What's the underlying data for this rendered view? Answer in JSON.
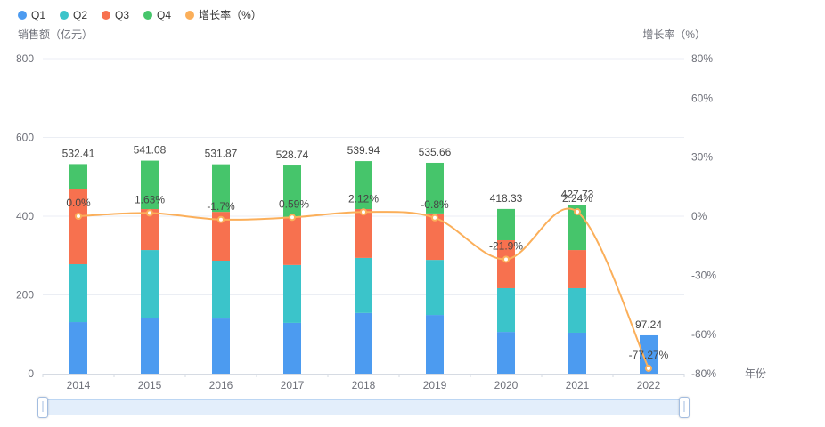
{
  "legend": {
    "items": [
      {
        "label": "Q1",
        "color": "#4C9BF0"
      },
      {
        "label": "Q2",
        "color": "#3BC4CA"
      },
      {
        "label": "Q3",
        "color": "#F7714F"
      },
      {
        "label": "Q4",
        "color": "#46C56B"
      },
      {
        "label": "增长率（%）",
        "color": "#FBAF5A"
      }
    ]
  },
  "chart_data": {
    "type": "bar",
    "categories": [
      "2014",
      "2015",
      "2016",
      "2017",
      "2018",
      "2019",
      "2020",
      "2021",
      "2022"
    ],
    "series": [
      {
        "name": "Q1",
        "kind": "bar",
        "stack": true,
        "color": "#4C9BF0",
        "values": [
          131,
          142,
          140,
          129,
          154,
          149,
          106,
          104,
          97.24
        ]
      },
      {
        "name": "Q2",
        "kind": "bar",
        "stack": true,
        "color": "#3BC4CA",
        "values": [
          147,
          172,
          147,
          147,
          140,
          140,
          111,
          113,
          0
        ]
      },
      {
        "name": "Q3",
        "kind": "bar",
        "stack": true,
        "color": "#F7714F",
        "values": [
          192,
          104,
          124,
          122,
          124,
          118,
          122,
          97,
          0
        ]
      },
      {
        "name": "Q4",
        "kind": "bar",
        "stack": true,
        "color": "#46C56B",
        "values": [
          62.41,
          123.08,
          120.87,
          130.74,
          121.94,
          128.66,
          79.33,
          113.73,
          0
        ]
      },
      {
        "name": "增长率（%）",
        "kind": "line",
        "axis": "right",
        "color": "#FBAF5A",
        "values": [
          0.0,
          1.63,
          -1.7,
          -0.59,
          2.12,
          -0.8,
          -21.9,
          2.24,
          -77.27
        ],
        "point_labels": [
          "0.0%",
          "1.63%",
          "-1.7%",
          "-0.59%",
          "2.12%",
          "-0.8%",
          "-21.9%",
          "2.24%",
          "-77.27%"
        ]
      }
    ],
    "bar_totals": [
      "532.41",
      "541.08",
      "531.87",
      "528.74",
      "539.94",
      "535.66",
      "418.33",
      "427.73",
      "97.24"
    ],
    "left_axis": {
      "name": "销售额（亿元）",
      "ticks": [
        0,
        200,
        400,
        600,
        800
      ],
      "min": 0,
      "max": 800
    },
    "right_axis": {
      "name": "增长率（%）",
      "tick_labels": [
        "80%",
        "60%",
        "30%",
        "0%",
        "-30%",
        "-60%",
        "-80%"
      ],
      "tick_values": [
        80,
        60,
        30,
        0,
        -30,
        -60,
        -80
      ],
      "min": -80,
      "max": 80
    },
    "x_axis": {
      "name": "年份"
    },
    "legend_position": "top-left",
    "grid": true
  }
}
